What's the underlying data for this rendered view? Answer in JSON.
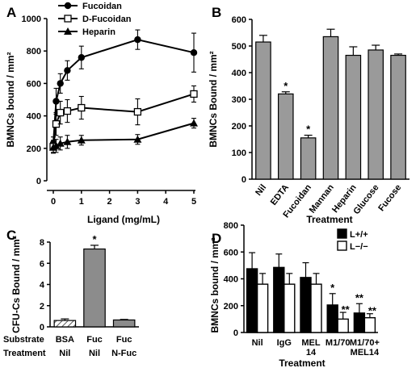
{
  "chart_data": [
    {
      "panel": "A",
      "type": "line",
      "xlabel": "Ligand (mg/mL)",
      "ylabel": "BMNCs bound / mm²",
      "xlim": [
        0,
        5
      ],
      "ylim": [
        0,
        1000
      ],
      "xticks": [
        0,
        1,
        2,
        3,
        4,
        5
      ],
      "yticks": [
        0,
        200,
        400,
        600,
        800,
        1000
      ],
      "legend_position": "top-left",
      "series": [
        {
          "name": "Fucoidan",
          "marker": "circle-filled",
          "x": [
            0,
            0.1,
            0.25,
            0.5,
            1,
            3,
            5
          ],
          "y": [
            230,
            490,
            600,
            680,
            760,
            870,
            790
          ],
          "err": [
            40,
            80,
            60,
            60,
            70,
            60,
            120
          ]
        },
        {
          "name": "D-Fucoidan",
          "marker": "square-open",
          "x": [
            0,
            0.1,
            0.25,
            0.5,
            1,
            3,
            5
          ],
          "y": [
            210,
            350,
            420,
            430,
            450,
            425,
            535
          ],
          "err": [
            40,
            70,
            70,
            70,
            70,
            80,
            50
          ]
        },
        {
          "name": "Heparin",
          "marker": "triangle-filled",
          "x": [
            0,
            0.1,
            0.25,
            0.5,
            1,
            3,
            5
          ],
          "y": [
            205,
            215,
            230,
            240,
            250,
            255,
            355
          ],
          "err": [
            30,
            40,
            40,
            40,
            30,
            30,
            30
          ]
        }
      ]
    },
    {
      "panel": "B",
      "type": "bar",
      "xlabel": "Treatment",
      "ylabel": "BMNCs Bound / mm²",
      "ylim": [
        0,
        600
      ],
      "yticks": [
        0,
        100,
        200,
        300,
        400,
        500,
        600
      ],
      "categories": [
        "Nil",
        "EDTA",
        "Fucoidan",
        "Mannan",
        "Heparin",
        "Glucose",
        "Fucose"
      ],
      "values": [
        515,
        320,
        155,
        535,
        465,
        485,
        465
      ],
      "err": [
        25,
        8,
        10,
        28,
        32,
        18,
        5
      ],
      "significant": [
        false,
        true,
        true,
        false,
        false,
        false,
        false
      ],
      "color": "#9a9a9a"
    },
    {
      "panel": "C",
      "type": "bar",
      "ylabel": "CFU-Cs Bound / mm²",
      "ylim": [
        0,
        8
      ],
      "yticks": [
        0,
        2,
        4,
        6,
        8
      ],
      "row_labels": [
        "Substrate",
        "Treatment"
      ],
      "categories": [
        {
          "substrate": "BSA",
          "treatment": "Nil"
        },
        {
          "substrate": "Fuc",
          "treatment": "Nil"
        },
        {
          "substrate": "Fuc",
          "treatment": "N-Fuc"
        }
      ],
      "values": [
        0.6,
        7.35,
        0.65
      ],
      "err": [
        0.15,
        0.35,
        0.05
      ],
      "significant": [
        false,
        true,
        false
      ],
      "fills": [
        "hatched",
        "#8c8c8c",
        "#8c8c8c"
      ]
    },
    {
      "panel": "D",
      "type": "bar",
      "xlabel": "Treatment",
      "ylabel": "BMNCs bound / mm²",
      "ylim": [
        0,
        800
      ],
      "yticks": [
        0,
        200,
        400,
        600,
        800
      ],
      "legend_position": "top-right",
      "categories": [
        "Nil",
        "IgG",
        "MEL\n14",
        "M1/70",
        "M1/70+\nMEL14"
      ],
      "series": [
        {
          "name": "L+/+",
          "color": "#000000",
          "values": [
            475,
            485,
            410,
            205,
            145
          ],
          "err": [
            120,
            100,
            110,
            85,
            70
          ],
          "marks": [
            "",
            "",
            "",
            "*",
            "**"
          ]
        },
        {
          "name": "L−/−",
          "color": "#ffffff",
          "values": [
            360,
            360,
            360,
            100,
            110
          ],
          "err": [
            80,
            80,
            80,
            50,
            30
          ],
          "marks": [
            "",
            "",
            "",
            "**",
            "**"
          ]
        }
      ]
    }
  ]
}
